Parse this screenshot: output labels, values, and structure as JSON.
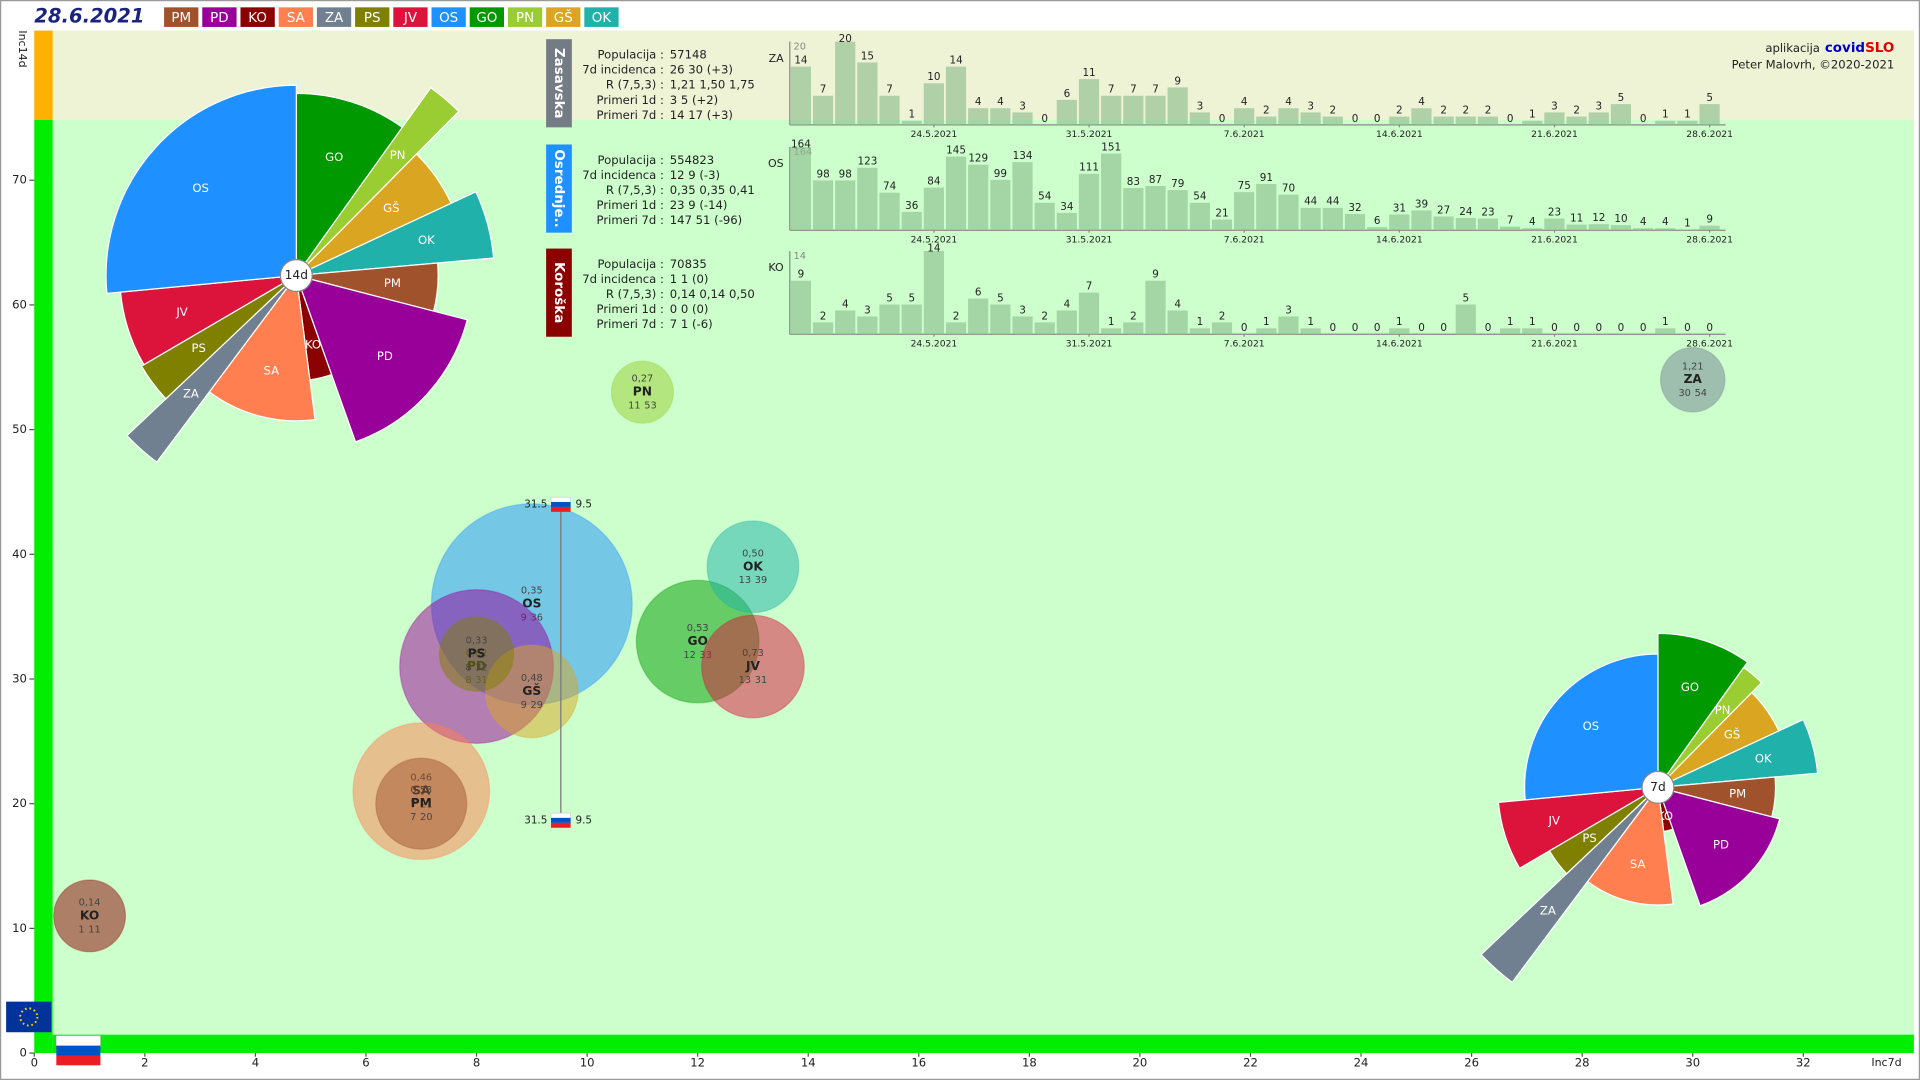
{
  "header": {
    "date": "28.6.2021",
    "legend": [
      {
        "label": "PM",
        "color": "#a0522d"
      },
      {
        "label": "PD",
        "color": "#990099"
      },
      {
        "label": "KO",
        "color": "#8b0000"
      },
      {
        "label": "SA",
        "color": "#ff7f50"
      },
      {
        "label": "ZA",
        "color": "#708090"
      },
      {
        "label": "PS",
        "color": "#808000"
      },
      {
        "label": "JV",
        "color": "#dc143c"
      },
      {
        "label": "OS",
        "color": "#1e90ff"
      },
      {
        "label": "GO",
        "color": "#009900"
      },
      {
        "label": "PN",
        "color": "#9acd32"
      },
      {
        "label": "GŠ",
        "color": "#daa520"
      },
      {
        "label": "OK",
        "color": "#20b2aa"
      }
    ]
  },
  "credits": {
    "app": "aplikacija",
    "brand_a": "covid",
    "brand_b": "SLO",
    "author": "Peter Malovrh, ©2020-2021"
  },
  "regions": [
    {
      "name": "Zasavska",
      "color": "#737b84",
      "stats": [
        {
          "label": "Populacija",
          "value": "57148"
        },
        {
          "label": "7d incidenca",
          "value": "26 30 (+3)"
        },
        {
          "label": "R (7,5,3)",
          "value": "1,21 1,50 1,75"
        },
        {
          "label": "Primeri 1d",
          "value": "3 5 (+2)"
        },
        {
          "label": "Primeri 7d",
          "value": "14 17 (+3)"
        }
      ]
    },
    {
      "name": "Osrednje..",
      "color": "#1e90ff",
      "stats": [
        {
          "label": "Populacija",
          "value": "554823"
        },
        {
          "label": "7d incidenca",
          "value": "12 9 (-3)"
        },
        {
          "label": "R (7,5,3)",
          "value": "0,35 0,35 0,41"
        },
        {
          "label": "Primeri 1d",
          "value": "23 9 (-14)"
        },
        {
          "label": "Primeri 7d",
          "value": "147 51 (-96)"
        }
      ]
    },
    {
      "name": "Koroška",
      "color": "#8b0000",
      "stats": [
        {
          "label": "Populacija",
          "value": "70835"
        },
        {
          "label": "7d incidenca",
          "value": "1 1 (0)"
        },
        {
          "label": "R (7,5,3)",
          "value": "0,14 0,14 0,50"
        },
        {
          "label": "Primeri 1d",
          "value": "0 0 (0)"
        },
        {
          "label": "Primeri 7d",
          "value": "7 1 (-6)"
        }
      ]
    }
  ],
  "markers": [
    {
      "left": "31.5",
      "right": "9.5"
    },
    {
      "left": "31.5",
      "right": "9.5"
    }
  ],
  "chart_data": [
    {
      "type": "bubble",
      "x_label": "Inc7d",
      "y_label": "Inc14d",
      "xlim": [
        0,
        34
      ],
      "ylim": [
        0,
        82
      ],
      "xticks": [
        0,
        2,
        4,
        6,
        8,
        10,
        12,
        14,
        16,
        18,
        20,
        22,
        24,
        26,
        28,
        30,
        32
      ],
      "yticks": [
        0,
        10,
        20,
        30,
        40,
        50,
        60,
        70
      ],
      "labels": [
        "OS",
        "PD",
        "SA",
        "GO",
        "OK",
        "JV",
        "GŠ",
        "PS",
        "PM",
        "KO",
        "PN",
        "ZA"
      ],
      "x": [
        9,
        8,
        7,
        12,
        13,
        13,
        9,
        8,
        7,
        1,
        11,
        30
      ],
      "values": [
        36,
        31,
        21,
        33,
        39,
        31,
        29,
        32,
        20,
        11,
        53,
        54
      ],
      "sizes": [
        554823,
        325000,
        257000,
        207000,
        116000,
        145000,
        118000,
        76000,
        114000,
        70835,
        53000,
        57148
      ],
      "r_labels": [
        "0,35",
        "0,62",
        "0,46",
        "0,53",
        "0,50",
        "0,73",
        "0,48",
        "0,33",
        "0,53",
        "0,14",
        "0,27",
        "1,21"
      ]
    },
    {
      "type": "polar",
      "center_label": "14d",
      "categories": [
        "GO",
        "PN",
        "GŠ",
        "OK",
        "PM",
        "PD",
        "KO",
        "SA",
        "ZA",
        "PS",
        "JV",
        "OS"
      ],
      "values": [
        33,
        53,
        29,
        39,
        20,
        31,
        11,
        21,
        54,
        32,
        31,
        36
      ],
      "weights": [
        207000,
        53000,
        118000,
        116000,
        114000,
        325000,
        70835,
        257000,
        57148,
        76000,
        145000,
        554823
      ]
    },
    {
      "type": "polar",
      "center_label": "7d",
      "categories": [
        "GO",
        "PN",
        "GŠ",
        "OK",
        "PM",
        "PD",
        "KO",
        "SA",
        "ZA",
        "PS",
        "JV",
        "OS"
      ],
      "values": [
        12,
        11,
        9,
        13,
        7,
        8,
        1,
        7,
        30,
        8,
        13,
        9
      ],
      "weights": [
        207000,
        53000,
        118000,
        116000,
        114000,
        325000,
        70835,
        257000,
        57148,
        76000,
        145000,
        554823
      ]
    },
    {
      "type": "bar",
      "code": "ZA",
      "color": "#8fbf8f",
      "ylim": [
        0,
        20
      ],
      "categories": [
        null,
        null,
        null,
        null,
        null,
        null,
        "24.5.2021",
        null,
        null,
        null,
        null,
        null,
        null,
        "31.5.2021",
        null,
        null,
        null,
        null,
        null,
        null,
        "7.6.2021",
        null,
        null,
        null,
        null,
        null,
        null,
        "14.6.2021",
        null,
        null,
        null,
        null,
        null,
        null,
        "21.6.2021",
        null,
        null,
        null,
        null,
        null,
        null,
        "28.6.2021"
      ],
      "values": [
        14,
        7,
        20,
        15,
        7,
        1,
        10,
        14,
        4,
        4,
        3,
        0,
        6,
        11,
        7,
        7,
        7,
        9,
        3,
        0,
        4,
        2,
        4,
        3,
        2,
        0,
        0,
        2,
        4,
        2,
        2,
        2,
        0,
        1,
        3,
        2,
        3,
        5,
        0,
        1,
        1,
        5
      ]
    },
    {
      "type": "bar",
      "code": "OS",
      "color": "#8fbf8f",
      "ylim": [
        0,
        164
      ],
      "categories": [
        null,
        null,
        null,
        null,
        null,
        null,
        "24.5.2021",
        null,
        null,
        null,
        null,
        null,
        null,
        "31.5.2021",
        null,
        null,
        null,
        null,
        null,
        null,
        "7.6.2021",
        null,
        null,
        null,
        null,
        null,
        null,
        "14.6.2021",
        null,
        null,
        null,
        null,
        null,
        null,
        "21.6.2021",
        null,
        null,
        null,
        null,
        null,
        null,
        "28.6.2021"
      ],
      "values": [
        164,
        98,
        98,
        123,
        74,
        36,
        84,
        145,
        129,
        99,
        134,
        54,
        34,
        111,
        151,
        83,
        87,
        79,
        54,
        21,
        75,
        91,
        70,
        44,
        44,
        32,
        6,
        31,
        39,
        27,
        24,
        23,
        7,
        4,
        23,
        11,
        12,
        10,
        4,
        4,
        1,
        9
      ]
    },
    {
      "type": "bar",
      "code": "KO",
      "color": "#8fbf8f",
      "ylim": [
        0,
        14
      ],
      "categories": [
        null,
        null,
        null,
        null,
        null,
        null,
        "24.5.2021",
        null,
        null,
        null,
        null,
        null,
        null,
        "31.5.2021",
        null,
        null,
        null,
        null,
        null,
        null,
        "7.6.2021",
        null,
        null,
        null,
        null,
        null,
        null,
        "14.6.2021",
        null,
        null,
        null,
        null,
        null,
        null,
        "21.6.2021",
        null,
        null,
        null,
        null,
        null,
        null,
        "28.6.2021"
      ],
      "values": [
        9,
        2,
        4,
        3,
        5,
        5,
        14,
        2,
        6,
        5,
        3,
        2,
        4,
        7,
        1,
        2,
        9,
        4,
        1,
        2,
        0,
        1,
        3,
        1,
        0,
        0,
        0,
        1,
        0,
        0,
        5,
        0,
        1,
        1,
        0,
        0,
        0,
        0,
        0,
        1,
        0,
        0
      ]
    }
  ]
}
